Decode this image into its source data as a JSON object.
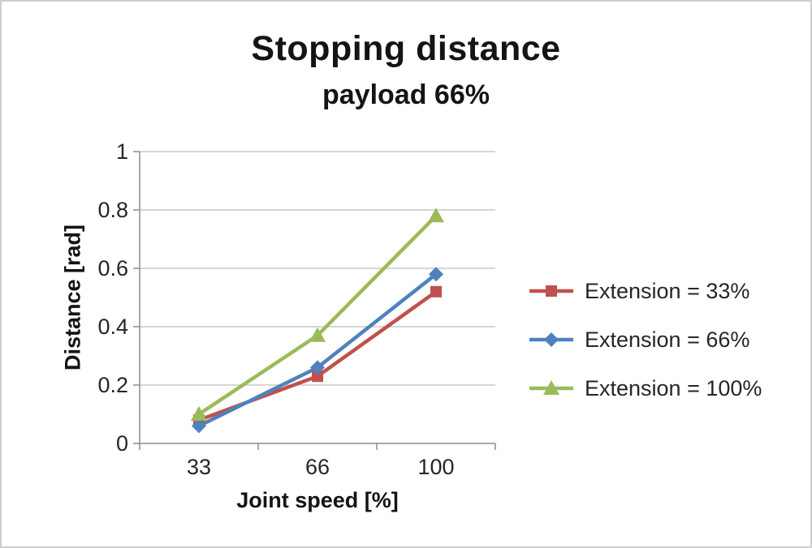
{
  "chart_data": {
    "type": "line",
    "title": "Stopping distance",
    "subtitle": "payload 66%",
    "xlabel": "Joint speed [%]",
    "ylabel": "Distance [rad]",
    "x": [
      33,
      66,
      100
    ],
    "x_tick_labels": [
      "33",
      "66",
      "100"
    ],
    "ylim": [
      0,
      1
    ],
    "y_ticks": [
      0,
      0.2,
      0.4,
      0.6,
      0.8,
      1
    ],
    "y_tick_labels": [
      "0",
      "0.2",
      "0.4",
      "0.6",
      "0.8",
      "1"
    ],
    "grid": true,
    "legend_position": "right",
    "series": [
      {
        "name": "Extension = 33%",
        "color": "#c0504d",
        "marker": "square",
        "values": [
          0.08,
          0.23,
          0.52
        ]
      },
      {
        "name": "Extension = 66%",
        "color": "#4f81bd",
        "marker": "diamond",
        "values": [
          0.06,
          0.26,
          0.58
        ]
      },
      {
        "name": "Extension = 100%",
        "color": "#9bbb59",
        "marker": "triangle",
        "values": [
          0.1,
          0.37,
          0.78
        ]
      }
    ],
    "colors": {
      "gridline": "#c9c9c9",
      "axis": "#8c8c8c",
      "tick_text": "#262626"
    }
  }
}
